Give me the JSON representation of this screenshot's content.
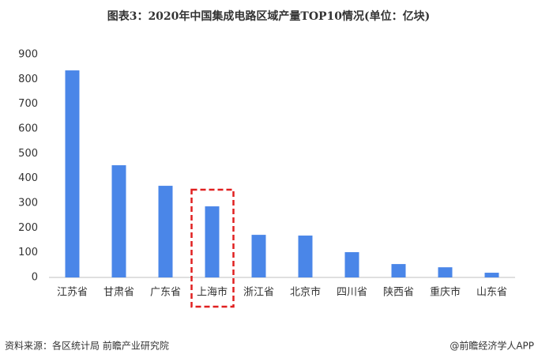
{
  "chart_data": {
    "type": "bar",
    "title": "图表3：2020年中国集成电路区域产量TOP10情况(单位：亿块)",
    "categories": [
      "江苏省",
      "甘肃省",
      "广东省",
      "上海市",
      "浙江省",
      "北京市",
      "四川省",
      "陕西省",
      "重庆市",
      "山东省"
    ],
    "values": [
      836,
      453,
      370,
      287,
      172,
      169,
      102,
      54,
      41,
      19
    ],
    "color": "#4a86e8",
    "ylim": [
      0,
      900
    ],
    "yticks": [
      0,
      100,
      200,
      300,
      400,
      500,
      600,
      700,
      800,
      900
    ],
    "grid": false,
    "highlight": 3,
    "highlight_color": "#e02020",
    "source": "资料来源：各区统计局 前瞻产业研究院",
    "credit": "@前瞻经济学人APP"
  }
}
